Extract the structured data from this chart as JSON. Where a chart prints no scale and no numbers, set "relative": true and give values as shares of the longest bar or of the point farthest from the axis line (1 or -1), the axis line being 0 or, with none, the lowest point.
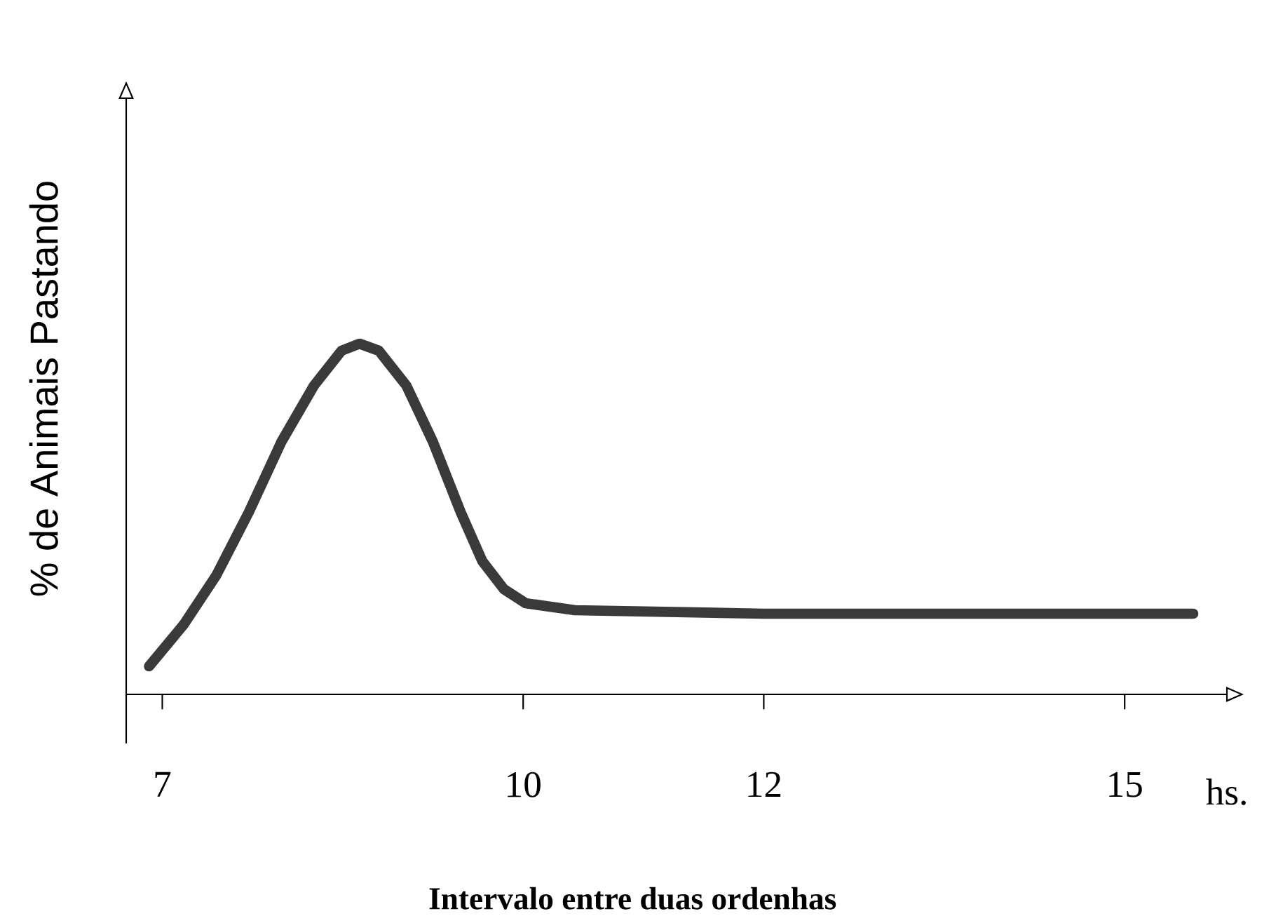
{
  "chart_data": {
    "type": "line",
    "xlabel": "Intervalo entre duas ordenhas",
    "ylabel": "% de Animais Pastando",
    "annotations": [
      "hs."
    ],
    "relative": true,
    "color": "#3a3a3a",
    "x": [
      6.89,
      7.18,
      7.45,
      7.72,
      7.99,
      8.26,
      8.49,
      8.64,
      8.8,
      9.03,
      9.25,
      9.48,
      9.66,
      9.84,
      10.02,
      10.43,
      12,
      15,
      15.57
    ],
    "values": [
      0.08,
      0.2,
      0.34,
      0.52,
      0.72,
      0.88,
      0.98,
      1.0,
      0.98,
      0.88,
      0.72,
      0.52,
      0.38,
      0.3,
      0.26,
      0.24,
      0.23,
      0.23,
      0.23
    ],
    "xlim": [
      6.7,
      15.85
    ],
    "xticks": [
      7,
      10,
      12,
      15
    ]
  }
}
